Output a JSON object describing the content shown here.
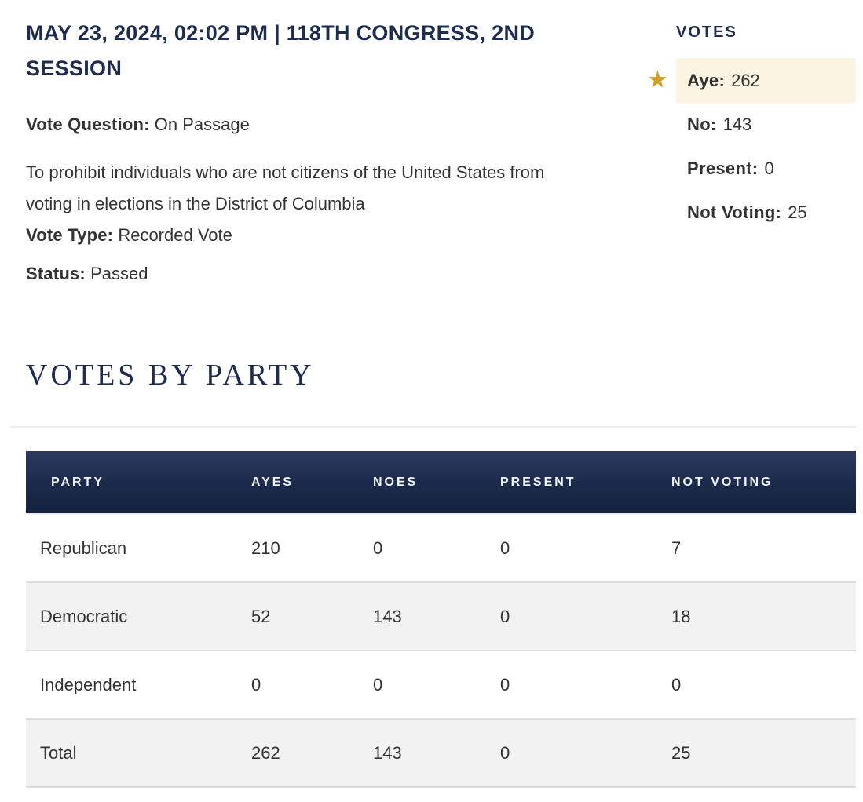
{
  "meta": {
    "date_line": "MAY 23, 2024, 02:02 PM | 118TH CONGRESS, 2ND SESSION",
    "vote_question_label": "Vote Question:",
    "vote_question": "On Passage",
    "description": "To prohibit individuals who are not citizens of the United States from voting in elections in the District of Columbia",
    "vote_type_label": "Vote Type:",
    "vote_type": "Recorded Vote",
    "status_label": "Status:",
    "status": "Passed"
  },
  "votes_summary": {
    "title": "VOTES",
    "winning_icon": "star-icon",
    "star_glyph": "★",
    "items": [
      {
        "label": "Aye:",
        "value": "262",
        "highlighted": true
      },
      {
        "label": "No:",
        "value": "143",
        "highlighted": false
      },
      {
        "label": "Present:",
        "value": "0",
        "highlighted": false
      },
      {
        "label": "Not Voting:",
        "value": "25",
        "highlighted": false
      }
    ]
  },
  "votes_by_party": {
    "title": "VOTES BY PARTY",
    "table": {
      "headers": [
        "PARTY",
        "AYES",
        "NOES",
        "PRESENT",
        "NOT VOTING"
      ],
      "rows": [
        {
          "party": "Republican",
          "ayes": "210",
          "noes": "0",
          "present": "0",
          "not_voting": "7"
        },
        {
          "party": "Democratic",
          "ayes": "52",
          "noes": "143",
          "present": "0",
          "not_voting": "18"
        },
        {
          "party": "Independent",
          "ayes": "0",
          "noes": "0",
          "present": "0",
          "not_voting": "0"
        },
        {
          "party": "Total",
          "ayes": "262",
          "noes": "143",
          "present": "0",
          "not_voting": "25"
        }
      ]
    }
  },
  "colors": {
    "navy": "#1d2c4f",
    "table_header_top": "#2a3a5f",
    "table_header_bottom": "#152140",
    "row_alt": "#f2f2f2",
    "row_border": "#dcdcdc",
    "highlight_bg": "#fbf4e1",
    "star_gold": "#d2a02a",
    "body_text": "#333333"
  }
}
